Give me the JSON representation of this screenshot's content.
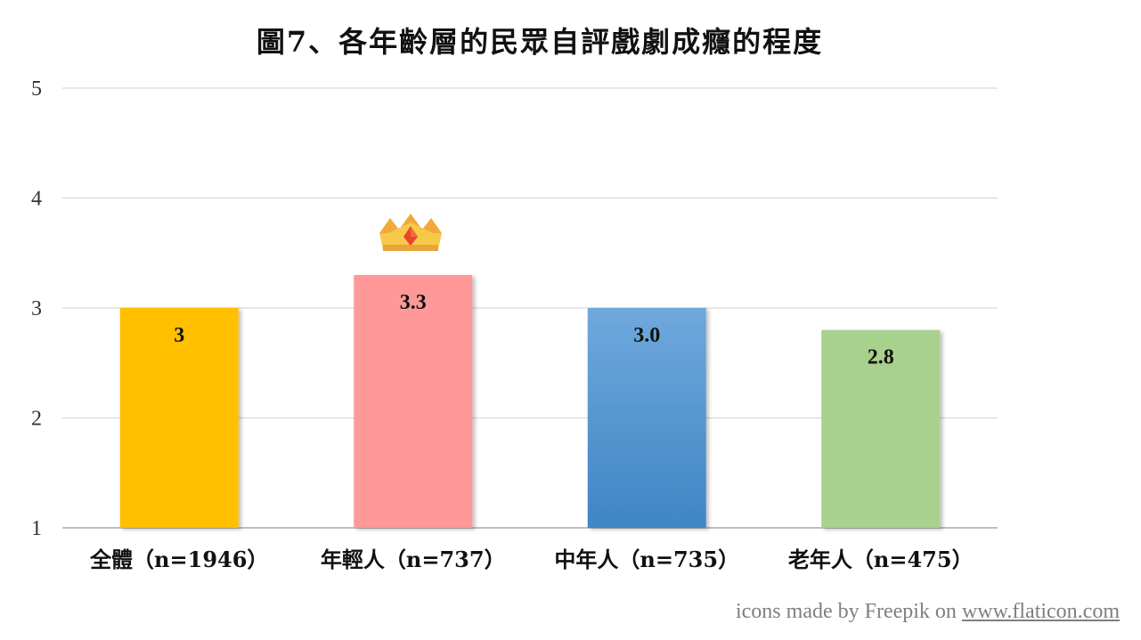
{
  "chart_data": {
    "type": "bar",
    "title": "圖7、各年齡層的民眾自評戲劇成癮的程度",
    "categories": [
      "全體（n=1946）",
      "年輕人（n=737）",
      "中年人（n=735）",
      "老年人（n=475）"
    ],
    "values": [
      3.0,
      3.3,
      3.0,
      2.8
    ],
    "data_labels": [
      "3",
      "3.3",
      "3.0",
      "2.8"
    ],
    "bar_colors": [
      "#FFC000",
      "#FF9999",
      "#5B9BD5",
      "#A9D18E"
    ],
    "ylim": [
      1,
      5
    ],
    "yticks": [
      "1",
      "2",
      "3",
      "4",
      "5"
    ],
    "grid": true,
    "legend": "none",
    "highlight_icon": "crown-icon"
  },
  "credit": {
    "text": "icons made by Freepik on ",
    "link": "www.flaticon.com"
  }
}
